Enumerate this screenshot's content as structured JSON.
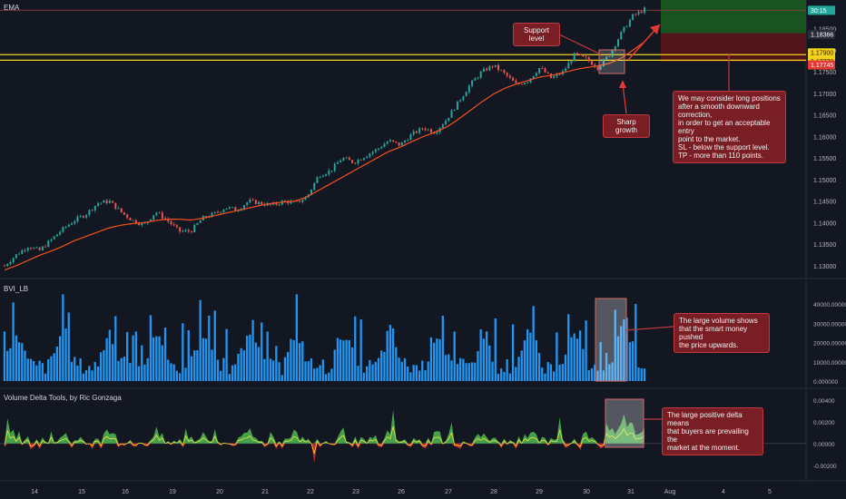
{
  "chart_data": [
    {
      "type": "candlestick",
      "title": "EMA",
      "yaxis_ticks": [
        "1.18500",
        "1.18000",
        "1.17500",
        "1.17000",
        "1.16500",
        "1.16000",
        "1.15500",
        "1.15000",
        "1.14500",
        "1.14000",
        "1.13500",
        "1.13000"
      ],
      "ylim": [
        1.1285,
        1.19
      ],
      "price_tags": [
        {
          "text": "30:15",
          "color": "#26a69a"
        },
        {
          "text": "1.18366",
          "color": "#2a2e39"
        },
        {
          "text": "1.17900",
          "color": "#f2d21b"
        },
        {
          "text": "1.17770",
          "color": "#f2d21b"
        },
        {
          "text": "1.17745",
          "color": "#e53935"
        }
      ],
      "horizontal_levels": [
        1.179,
        1.1777
      ],
      "close_series": [
        1.13,
        1.1325,
        1.1345,
        1.1335,
        1.136,
        1.1385,
        1.1405,
        1.142,
        1.1445,
        1.145,
        1.1425,
        1.1405,
        1.1395,
        1.1425,
        1.1405,
        1.138,
        1.138,
        1.141,
        1.142,
        1.1435,
        1.143,
        1.145,
        1.1445,
        1.144,
        1.145,
        1.1445,
        1.146,
        1.151,
        1.152,
        1.155,
        1.154,
        1.1555,
        1.157,
        1.159,
        1.158,
        1.1605,
        1.162,
        1.161,
        1.164,
        1.168,
        1.172,
        1.175,
        1.1765,
        1.1745,
        1.172,
        1.173,
        1.176,
        1.1735,
        1.175,
        1.179,
        1.178,
        1.176,
        1.179,
        1.184,
        1.188,
        1.1895
      ],
      "ema_series": [
        1.129,
        1.13,
        1.1312,
        1.1324,
        1.1334,
        1.1345,
        1.1358,
        1.1368,
        1.1378,
        1.1388,
        1.1394,
        1.1398,
        1.14,
        1.1405,
        1.1408,
        1.1408,
        1.1406,
        1.141,
        1.1416,
        1.1422,
        1.1428,
        1.1434,
        1.144,
        1.1445,
        1.1448,
        1.145,
        1.146,
        1.1475,
        1.149,
        1.1505,
        1.152,
        1.1535,
        1.155,
        1.1565,
        1.1575,
        1.1588,
        1.16,
        1.161,
        1.1622,
        1.164,
        1.166,
        1.168,
        1.1698,
        1.1712,
        1.1722,
        1.173,
        1.1738,
        1.1742,
        1.1748,
        1.1755,
        1.176,
        1.1764,
        1.177,
        1.1782,
        1.18,
        1.182
      ]
    },
    {
      "type": "bar",
      "title": "BVI_LB",
      "yaxis_ticks": [
        "40000.000000",
        "30000.000000",
        "20000.000000",
        "10000.000000",
        "0.000000"
      ],
      "ylim": [
        0,
        48000
      ]
    },
    {
      "type": "area",
      "title": "Volume Delta Tools, by Ric Gonzaga",
      "yaxis_ticks": [
        "0.00400",
        "0.00200",
        "0.00000",
        "-0.00200"
      ],
      "ylim": [
        -0.0026,
        0.0044
      ]
    }
  ],
  "xaxis_labels": [
    "14",
    "15",
    "16",
    "19",
    "20",
    "21",
    "22",
    "23",
    "26",
    "27",
    "28",
    "29",
    "30",
    "31",
    "Aug",
    "4",
    "5"
  ],
  "annotations": {
    "support": "Support level",
    "sharp": "Sharp growth",
    "long": "We may consider long positions\nafter a smooth downward correction,\nin order to get an acceptable entry\npoint to the market.\nSL - below the support level.\nTP - more than 110 points.",
    "volume": "The large volume shows\nthat the smart money pushed\nthe price upwards.",
    "delta": "The large positive delta means\nthat buyers are prevailing the\nmarket at the moment."
  },
  "colors": {
    "bg": "#131722",
    "up": "#26a69a",
    "down": "#ef5350",
    "ema": "#f4511e",
    "volume": "#2196f3",
    "delta_pos": "#4caf50",
    "delta_neg": "#d32f2f",
    "level": "#f2d21b",
    "tp_zone": "#1b5e20",
    "sl_zone": "#5a1519"
  }
}
